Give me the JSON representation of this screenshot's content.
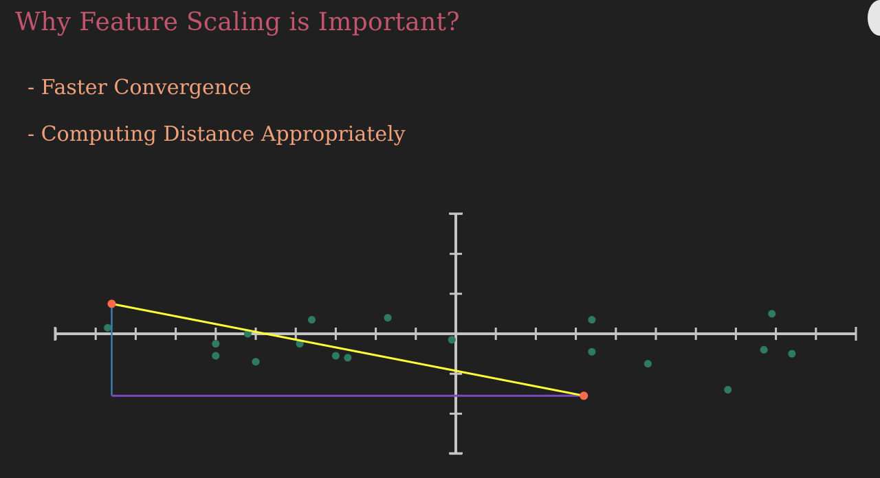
{
  "title": "Why Feature Scaling is Important?",
  "bullets": [
    "- Faster Convergence",
    "- Computing Distance Appropriately"
  ],
  "chart_data": {
    "type": "scatter",
    "xlim": [
      -10,
      10
    ],
    "ylim": [
      -3,
      3
    ],
    "points": [
      [
        -8.7,
        0.15
      ],
      [
        -6.0,
        -0.25
      ],
      [
        -6.0,
        -0.55
      ],
      [
        -5.2,
        0.0
      ],
      [
        -5.0,
        -0.7
      ],
      [
        -3.9,
        -0.25
      ],
      [
        -3.6,
        0.35
      ],
      [
        -3.0,
        -0.55
      ],
      [
        -2.7,
        -0.6
      ],
      [
        -1.7,
        0.4
      ],
      [
        -0.1,
        -0.15
      ],
      [
        3.4,
        -0.45
      ],
      [
        3.4,
        0.35
      ],
      [
        4.8,
        -0.75
      ],
      [
        6.8,
        -1.4
      ],
      [
        7.7,
        -0.4
      ],
      [
        7.9,
        0.5
      ],
      [
        8.4,
        -0.5
      ]
    ],
    "endpoint_a": [
      -8.6,
      0.75
    ],
    "endpoint_b": [
      3.2,
      -1.55
    ],
    "colors": {
      "axis": "#c4c4c4",
      "points": "#2e7a62",
      "endpoints": "#ff6a4a",
      "hypotenuse": "#ffff3a",
      "horizontal_leg": "#7a4bc0",
      "vertical_leg": "#3d7bb0"
    }
  }
}
